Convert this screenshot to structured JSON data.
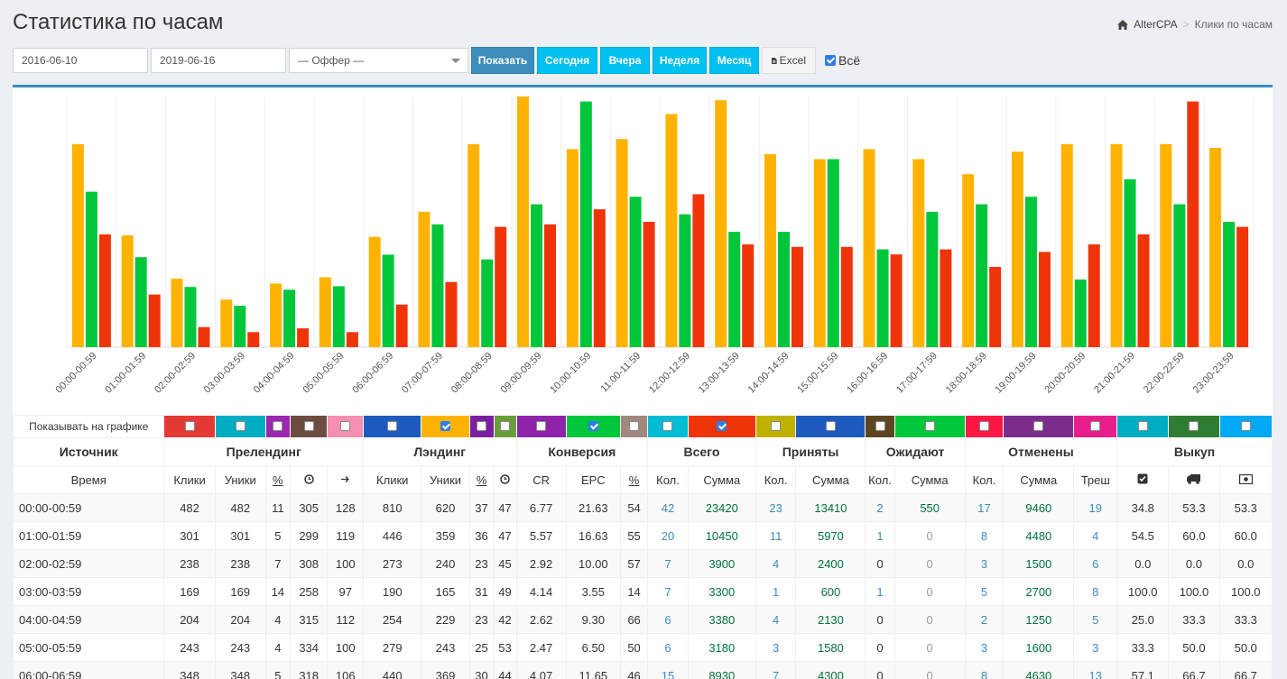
{
  "page": {
    "title": "Статистика по часам"
  },
  "breadcrumb": {
    "home": "AlterCPA",
    "current": "Клики по часам"
  },
  "filters": {
    "date_from": "2016-06-10",
    "date_to": "2019-06-16",
    "offer": "— Оффер —",
    "buttons": {
      "show": "Показать",
      "today": "Сегодня",
      "yesterday": "Вчера",
      "week": "Неделя",
      "month": "Месяц",
      "excel": "Excel"
    },
    "all_label": "Всё",
    "all_checked": true
  },
  "chart_data": {
    "type": "bar",
    "categories": [
      "00:00-00:59",
      "01:00-01:59",
      "02:00-02:59",
      "03:00-03:59",
      "04:00-04:59",
      "05:00-05:59",
      "06:00-06:59",
      "07:00-07:59",
      "08:00-08:59",
      "09:00-09:59",
      "10:00-10:59",
      "11:00-11:59",
      "12:00-12:59",
      "13:00-13:59",
      "14:00-14:59",
      "15:00-15:59",
      "16:00-16:59",
      "17:00-17:59",
      "18:00-18:59",
      "19:00-19:59",
      "20:00-20:59",
      "21:00-21:59",
      "22:00-22:59",
      "23:00-23:59"
    ],
    "series": [
      {
        "color": "#ffb300",
        "values": [
          810,
          446,
          273,
          190,
          254,
          279,
          440,
          540,
          810,
          1000,
          790,
          830,
          930,
          985,
          770,
          750,
          790,
          750,
          690,
          780,
          810,
          810,
          810,
          795
        ]
      },
      {
        "color": "#00c63b",
        "values": [
          620,
          359,
          240,
          165,
          229,
          243,
          369,
          490,
          350,
          570,
          980,
          600,
          530,
          460,
          460,
          750,
          390,
          540,
          570,
          600,
          270,
          670,
          570,
          500
        ]
      },
      {
        "color": "#f0340a",
        "values": [
          450,
          210,
          80,
          60,
          75,
          60,
          170,
          260,
          480,
          490,
          550,
          500,
          610,
          410,
          400,
          400,
          370,
          390,
          320,
          380,
          410,
          450,
          980,
          480
        ]
      }
    ],
    "ylim": [
      0,
      1000
    ],
    "grid": true,
    "legend": "none"
  },
  "swatches": {
    "label": "Показывать на графике",
    "colors": [
      "#e53935",
      "#00acc1",
      "#9c27b0",
      "#6d4c41",
      "#f48fb1",
      "#1e5bbf",
      "#ffb300",
      "#7b1fa2",
      "#689f38",
      "#8e24aa",
      "#00c63b",
      "#a1887f",
      "#00bcd4",
      "#f0340a",
      "#c0b000",
      "#1e5bbf",
      "#5d4520",
      "#00c63b",
      "#ff1744",
      "#7b2d8e",
      "#e91e8c",
      "#00acc1",
      "#2e7d32",
      "#03a9f4"
    ],
    "checked": [
      6,
      10,
      13
    ]
  },
  "table": {
    "groups": [
      "Источник",
      "Прелендинг",
      "Лэндинг",
      "Конверсия",
      "Всего",
      "Приняты",
      "Ожидают",
      "Отменены",
      "Выкуп"
    ],
    "columns": [
      "Время",
      "Клики",
      "Уники",
      "%",
      "",
      "",
      "Клики",
      "Уники",
      "%",
      "",
      "CR",
      "EPC",
      "%",
      "Кол.",
      "Сумма",
      "Кол.",
      "Сумма",
      "Кол.",
      "Сумма",
      "Кол.",
      "Сумма",
      "Треш",
      "",
      "",
      ""
    ],
    "rows": [
      [
        "00:00-00:59",
        "482",
        "482",
        "11",
        "305",
        "128",
        "810",
        "620",
        "37",
        "47",
        "6.77",
        "21.63",
        "54",
        "42",
        "23420",
        "23",
        "13410",
        "2",
        "550",
        "17",
        "9460",
        "19",
        "34.8",
        "53.3",
        "53.3"
      ],
      [
        "01:00-01:59",
        "301",
        "301",
        "5",
        "299",
        "119",
        "446",
        "359",
        "36",
        "47",
        "5.57",
        "16.63",
        "55",
        "20",
        "10450",
        "11",
        "5970",
        "1",
        "0",
        "8",
        "4480",
        "4",
        "54.5",
        "60.0",
        "60.0"
      ],
      [
        "02:00-02:59",
        "238",
        "238",
        "7",
        "308",
        "100",
        "273",
        "240",
        "23",
        "45",
        "2.92",
        "10.00",
        "57",
        "7",
        "3900",
        "4",
        "2400",
        "0",
        "0",
        "3",
        "1500",
        "6",
        "0.0",
        "0.0",
        "0.0"
      ],
      [
        "03:00-03:59",
        "169",
        "169",
        "14",
        "258",
        "97",
        "190",
        "165",
        "31",
        "49",
        "4.14",
        "3.55",
        "14",
        "7",
        "3300",
        "1",
        "600",
        "1",
        "0",
        "5",
        "2700",
        "8",
        "100.0",
        "100.0",
        "100.0"
      ],
      [
        "04:00-04:59",
        "204",
        "204",
        "4",
        "315",
        "112",
        "254",
        "229",
        "23",
        "42",
        "2.62",
        "9.30",
        "66",
        "6",
        "3380",
        "4",
        "2130",
        "0",
        "0",
        "2",
        "1250",
        "5",
        "25.0",
        "33.3",
        "33.3"
      ],
      [
        "05:00-05:59",
        "243",
        "243",
        "4",
        "334",
        "100",
        "279",
        "243",
        "25",
        "53",
        "2.47",
        "6.50",
        "50",
        "6",
        "3180",
        "3",
        "1580",
        "0",
        "0",
        "3",
        "1600",
        "3",
        "33.3",
        "50.0",
        "50.0"
      ],
      [
        "06:00-06:59",
        "348",
        "348",
        "5",
        "318",
        "106",
        "440",
        "369",
        "30",
        "44",
        "4.07",
        "11.65",
        "46",
        "15",
        "8930",
        "7",
        "4300",
        "0",
        "0",
        "8",
        "4630",
        "13",
        "57.1",
        "66.7",
        "66.7"
      ]
    ]
  }
}
